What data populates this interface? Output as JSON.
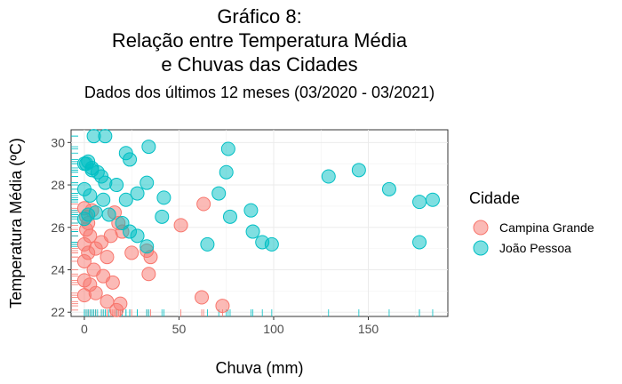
{
  "chart_data": {
    "type": "scatter",
    "title_lines": [
      "Gráfico 8:",
      "Relação entre Temperatura Média",
      "e Chuvas das Cidades"
    ],
    "subtitle": "Dados dos últimos 12 meses (03/2020 - 03/2021)",
    "xlabel": "Chuva (mm)",
    "ylabel": "Temperatura Média (ºC)",
    "xlim": [
      -7,
      192
    ],
    "ylim": [
      21.8,
      30.6
    ],
    "xticks": [
      0,
      50,
      100,
      150
    ],
    "yticks": [
      22,
      24,
      26,
      28,
      30
    ],
    "grid": true,
    "rug": true,
    "legend": {
      "title": "Cidade",
      "placement": "right"
    },
    "series": [
      {
        "name": "Campina Grande",
        "color": "#F8766D",
        "points": [
          [
            0,
            26.9
          ],
          [
            1,
            26.5
          ],
          [
            2,
            26.2
          ],
          [
            1,
            25.9
          ],
          [
            3,
            25.6
          ],
          [
            4,
            26.8
          ],
          [
            0,
            25.2
          ],
          [
            2,
            24.8
          ],
          [
            6,
            25.0
          ],
          [
            9,
            25.3
          ],
          [
            12,
            24.6
          ],
          [
            14,
            25.6
          ],
          [
            16,
            26.7
          ],
          [
            18,
            26.2
          ],
          [
            20,
            25.8
          ],
          [
            25,
            24.8
          ],
          [
            33,
            24.9
          ],
          [
            35,
            24.6
          ],
          [
            34,
            23.8
          ],
          [
            15,
            23.4
          ],
          [
            10,
            23.7
          ],
          [
            5,
            24.0
          ],
          [
            3,
            23.3
          ],
          [
            6,
            22.9
          ],
          [
            12,
            22.5
          ],
          [
            17,
            22.1
          ],
          [
            19,
            22.4
          ],
          [
            0,
            22.8
          ],
          [
            0,
            23.5
          ],
          [
            51,
            26.1
          ],
          [
            63,
            27.1
          ],
          [
            62,
            22.7
          ],
          [
            73,
            22.3
          ],
          [
            0,
            24.4
          ]
        ]
      },
      {
        "name": "João Pessoa",
        "color": "#00BFC4",
        "points": [
          [
            5,
            30.3
          ],
          [
            11,
            30.3
          ],
          [
            22,
            29.5
          ],
          [
            24,
            29.2
          ],
          [
            34,
            29.8
          ],
          [
            76,
            29.7
          ],
          [
            0,
            29.0
          ],
          [
            2,
            29.1
          ],
          [
            4,
            28.7
          ],
          [
            7,
            28.6
          ],
          [
            9,
            28.4
          ],
          [
            11,
            28.1
          ],
          [
            17,
            28.0
          ],
          [
            33,
            28.1
          ],
          [
            0,
            27.8
          ],
          [
            3,
            27.5
          ],
          [
            10,
            27.3
          ],
          [
            22,
            27.3
          ],
          [
            28,
            27.6
          ],
          [
            42,
            27.4
          ],
          [
            71,
            27.6
          ],
          [
            75,
            28.6
          ],
          [
            88,
            26.8
          ],
          [
            0,
            26.4
          ],
          [
            2,
            26.6
          ],
          [
            6,
            26.7
          ],
          [
            13,
            26.6
          ],
          [
            20,
            26.2
          ],
          [
            24,
            25.8
          ],
          [
            28,
            25.6
          ],
          [
            33,
            25.1
          ],
          [
            41,
            26.5
          ],
          [
            65,
            25.2
          ],
          [
            77,
            26.5
          ],
          [
            89,
            25.8
          ],
          [
            94,
            25.3
          ],
          [
            99,
            25.2
          ],
          [
            129,
            28.4
          ],
          [
            145,
            28.7
          ],
          [
            161,
            27.8
          ],
          [
            177,
            27.2
          ],
          [
            184,
            27.3
          ],
          [
            177,
            25.3
          ],
          [
            1,
            29.0
          ],
          [
            4,
            28.8
          ]
        ]
      }
    ]
  }
}
